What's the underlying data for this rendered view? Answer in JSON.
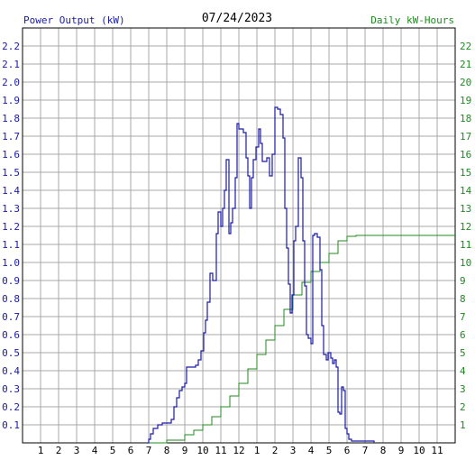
{
  "chart_data": {
    "type": "line",
    "title": "07/24/2023",
    "ylabel_left": "Power Output (kW)",
    "ylabel_right": "Daily kW-Hours",
    "x_tick_labels": [
      "1",
      "2",
      "3",
      "4",
      "5",
      "6",
      "7",
      "8",
      "9",
      "10",
      "11",
      "12",
      "1",
      "2",
      "3",
      "4",
      "5",
      "6",
      "7",
      "8",
      "9",
      "10",
      "11"
    ],
    "y_left_ticks": [
      "0.1",
      "0.2",
      "0.3",
      "0.4",
      "0.5",
      "0.6",
      "0.7",
      "0.8",
      "0.9",
      "1.0",
      "1.1",
      "1.2",
      "1.3",
      "1.4",
      "1.5",
      "1.6",
      "1.7",
      "1.8",
      "1.9",
      "2.0",
      "2.1",
      "2.2"
    ],
    "y_right_ticks": [
      "1",
      "2",
      "3",
      "4",
      "5",
      "6",
      "7",
      "8",
      "9",
      "10",
      "11",
      "12",
      "13",
      "14",
      "15",
      "16",
      "17",
      "18",
      "19",
      "20",
      "21",
      "22"
    ],
    "ylim_left": [
      0,
      2.3
    ],
    "ylim_right": [
      0,
      23
    ],
    "xlim_hours": [
      0,
      24
    ],
    "grid": true,
    "colors": {
      "power": "#1a1aa8",
      "energy": "#1f8a1f",
      "grid": "#a8a8a8",
      "left_labels": "#1a1aa8",
      "right_labels": "#1f8a1f",
      "title": "#000000"
    },
    "series": [
      {
        "name": "Power Output (kW)",
        "points": [
          [
            6.9,
            0
          ],
          [
            7.0,
            0.02
          ],
          [
            7.1,
            0.05
          ],
          [
            7.25,
            0.08
          ],
          [
            7.5,
            0.1
          ],
          [
            7.75,
            0.11
          ],
          [
            8.0,
            0.11
          ],
          [
            8.25,
            0.13
          ],
          [
            8.4,
            0.2
          ],
          [
            8.55,
            0.25
          ],
          [
            8.7,
            0.29
          ],
          [
            8.85,
            0.31
          ],
          [
            9.0,
            0.33
          ],
          [
            9.1,
            0.42
          ],
          [
            9.35,
            0.42
          ],
          [
            9.6,
            0.43
          ],
          [
            9.75,
            0.46
          ],
          [
            9.9,
            0.51
          ],
          [
            10.05,
            0.61
          ],
          [
            10.15,
            0.68
          ],
          [
            10.25,
            0.78
          ],
          [
            10.4,
            0.94
          ],
          [
            10.55,
            0.9
          ],
          [
            10.75,
            1.16
          ],
          [
            10.85,
            1.28
          ],
          [
            11.0,
            1.2
          ],
          [
            11.1,
            1.3
          ],
          [
            11.2,
            1.4
          ],
          [
            11.3,
            1.57
          ],
          [
            11.45,
            1.16
          ],
          [
            11.55,
            1.22
          ],
          [
            11.65,
            1.3
          ],
          [
            11.8,
            1.47
          ],
          [
            11.9,
            1.77
          ],
          [
            12.0,
            1.74
          ],
          [
            12.25,
            1.72
          ],
          [
            12.4,
            1.58
          ],
          [
            12.5,
            1.48
          ],
          [
            12.6,
            1.3
          ],
          [
            12.7,
            1.47
          ],
          [
            12.8,
            1.57
          ],
          [
            12.95,
            1.64
          ],
          [
            13.1,
            1.74
          ],
          [
            13.2,
            1.66
          ],
          [
            13.3,
            1.56
          ],
          [
            13.55,
            1.58
          ],
          [
            13.7,
            1.48
          ],
          [
            13.85,
            1.6
          ],
          [
            14.0,
            1.86
          ],
          [
            14.15,
            1.85
          ],
          [
            14.3,
            1.82
          ],
          [
            14.45,
            1.69
          ],
          [
            14.55,
            1.3
          ],
          [
            14.65,
            1.08
          ],
          [
            14.75,
            0.88
          ],
          [
            14.85,
            0.72
          ],
          [
            14.95,
            0.82
          ],
          [
            15.05,
            1.12
          ],
          [
            15.15,
            1.2
          ],
          [
            15.3,
            1.58
          ],
          [
            15.45,
            1.47
          ],
          [
            15.55,
            1.12
          ],
          [
            15.65,
            0.87
          ],
          [
            15.75,
            0.6
          ],
          [
            15.85,
            0.58
          ],
          [
            16.0,
            0.55
          ],
          [
            16.1,
            1.15
          ],
          [
            16.2,
            1.16
          ],
          [
            16.35,
            1.14
          ],
          [
            16.5,
            0.96
          ],
          [
            16.6,
            0.65
          ],
          [
            16.7,
            0.49
          ],
          [
            16.85,
            0.46
          ],
          [
            16.95,
            0.5
          ],
          [
            17.1,
            0.47
          ],
          [
            17.2,
            0.44
          ],
          [
            17.3,
            0.46
          ],
          [
            17.4,
            0.42
          ],
          [
            17.5,
            0.17
          ],
          [
            17.6,
            0.16
          ],
          [
            17.7,
            0.31
          ],
          [
            17.8,
            0.29
          ],
          [
            17.9,
            0.08
          ],
          [
            18.0,
            0.05
          ],
          [
            18.1,
            0.02
          ],
          [
            18.25,
            0.01
          ],
          [
            18.5,
            0.01
          ],
          [
            19.5,
            0
          ]
        ]
      },
      {
        "name": "Daily kW-Hours",
        "points": [
          [
            7.0,
            0
          ],
          [
            8.0,
            0.15
          ],
          [
            9.0,
            0.45
          ],
          [
            9.5,
            0.7
          ],
          [
            10.0,
            1.0
          ],
          [
            10.5,
            1.45
          ],
          [
            11.0,
            2.0
          ],
          [
            11.5,
            2.6
          ],
          [
            12.0,
            3.3
          ],
          [
            12.5,
            4.1
          ],
          [
            13.0,
            4.9
          ],
          [
            13.5,
            5.7
          ],
          [
            14.0,
            6.5
          ],
          [
            14.5,
            7.4
          ],
          [
            15.0,
            8.2
          ],
          [
            15.5,
            8.9
          ],
          [
            16.0,
            9.5
          ],
          [
            16.5,
            10.0
          ],
          [
            17.0,
            10.5
          ],
          [
            17.5,
            11.2
          ],
          [
            18.0,
            11.45
          ],
          [
            18.5,
            11.5
          ],
          [
            24.0,
            11.5
          ]
        ]
      }
    ]
  }
}
